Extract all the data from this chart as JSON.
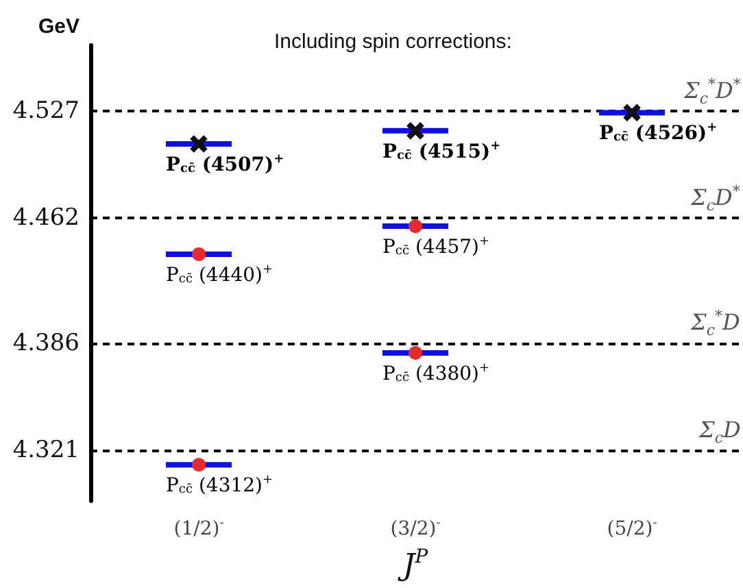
{
  "chart_data": {
    "type": "scatter",
    "title": "Including spin corrections:",
    "xlabel": "J$^{P}$",
    "ylabel": "GeV",
    "categories": [
      "(1/2)$^{-}$",
      "(3/2)$^{-}$",
      "(5/2)$^{-}$"
    ],
    "series": [
      {
        "color": "#e82a2a",
        "marker": "circle",
        "x": [
          "(1/2)$^{-}$",
          "(1/2)$^{-}$",
          "(3/2)$^{-}$",
          "(3/2)$^{-}$"
        ],
        "values": [
          4.44,
          4.312,
          4.457,
          4.38
        ]
      },
      {
        "color": "#111111",
        "marker": "cross",
        "x": [
          "(1/2)$^{-}$",
          "(3/2)$^{-}$",
          "(5/2)$^{-}$"
        ],
        "values": [
          4.507,
          4.515,
          4.526
        ]
      }
    ],
    "annotations": [
      {
        "text": "P$_{cc̄}$ (4507)$^{+}$",
        "x": "(1/2)$^{-}$",
        "y": 4.507
      },
      {
        "text": "P$_{cc̄}$ (4515)$^{+}$",
        "x": "(3/2)$^{-}$",
        "y": 4.515
      },
      {
        "text": "P$_{cc̄}$ (4526)$^{+}$",
        "x": "(5/2)$^{-}$",
        "y": 4.526
      },
      {
        "text": "P$_{cc̄}$ (4440)$^{+}$",
        "x": "(1/2)$^{-}$",
        "y": 4.44
      },
      {
        "text": "P$_{cc̄}$ (4457)$^{+}$",
        "x": "(3/2)$^{-}$",
        "y": 4.457
      },
      {
        "text": "P$_{cc̄}$ (4380)$^{+}$",
        "x": "(3/2)$^{-}$",
        "y": 4.38
      },
      {
        "text": "P$_{cc̄}$ (4312)$^{+}$",
        "x": "(1/2)$^{-}$",
        "y": 4.312
      }
    ],
    "ref_lines": [
      {
        "axis": "y",
        "value": 4.527,
        "label": "Σ$_{c}$$^{*}$D$^{*}$",
        "color": "#000000",
        "line_style": "dashed"
      },
      {
        "axis": "y",
        "value": 4.462,
        "label": "Σ$_{c}$D$^{*}$",
        "color": "#000000",
        "line_style": "dashed"
      },
      {
        "axis": "y",
        "value": 4.386,
        "label": "Σ$_{c}$$^{*}$D",
        "color": "#000000",
        "line_style": "dashed"
      },
      {
        "axis": "y",
        "value": 4.321,
        "label": "Σ$_{c}$D",
        "color": "#000000",
        "line_style": "dashed"
      }
    ],
    "ylim": [
      4.29,
      4.567
    ],
    "yticks": [
      4.321,
      4.386,
      4.462,
      4.527
    ],
    "grid": false
  }
}
